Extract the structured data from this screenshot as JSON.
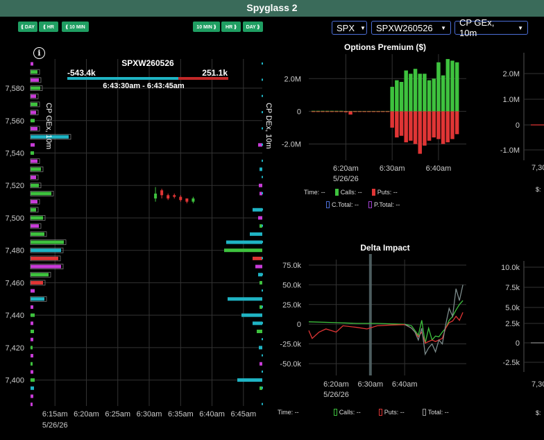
{
  "window": {
    "title": "Spyglass 2"
  },
  "toolbar": {
    "left_buttons": [
      "⟪ DAY",
      "⟪ HR",
      "⟪ 10 MIN"
    ],
    "right_buttons": [
      "10 MIN ⟫",
      "HR ⟫",
      "DAY ⟫"
    ],
    "selects": [
      {
        "value": "SPX"
      },
      {
        "value": "SPXW260526"
      },
      {
        "value": "CP GEx, 10m"
      }
    ]
  },
  "icons": {
    "info": "info-icon",
    "caret": "caret-down-icon"
  },
  "main_chart": {
    "expiry_label": "SPXW260526",
    "net_left": "-543.4k",
    "net_right": "251.1k",
    "time_range": "6:43:30am - 6:43:45am",
    "left_axis_label": "CP GEx, 10m",
    "right_axis_label": "CP DEx, 10m"
  },
  "side_panels": {
    "premium_legend": {
      "time": "Time:",
      "time_val": "--",
      "calls": "Calls:",
      "calls_val": "--",
      "puts": "Puts:",
      "puts_val": "--",
      "ctotal": "C.Total:",
      "ctotal_val": "--",
      "ptotal": "P.Total:",
      "ptotal_val": "--"
    },
    "delta_legend": {
      "time": "Time:",
      "time_val": "--",
      "calls": "Calls:",
      "calls_val": "--",
      "puts": "Puts:",
      "puts_val": "--",
      "total": "Total:",
      "total_val": "--"
    },
    "partial_left_label": "$:"
  },
  "colors": {
    "calls": "#3ec23e",
    "puts": "#e03535",
    "cyan": "#1fb4c4",
    "magenta": "#c83cd8",
    "accent": "#1f9e62",
    "titlebar": "#3a6b5a"
  },
  "chart_data": [
    {
      "type": "bar",
      "title": "",
      "x_axis": {
        "type": "time",
        "tick_labels": [
          "6:15am",
          "6:20am",
          "6:25am",
          "6:30am",
          "6:35am",
          "6:40am",
          "6:45am"
        ],
        "date_label": "5/26/26"
      },
      "y_axis": {
        "tick_labels": [
          "7,400",
          "7,420",
          "7,440",
          "7,460",
          "7,480",
          "7,500",
          "7,520",
          "7,540",
          "7,560",
          "7,580"
        ],
        "range": [
          7384,
          7598
        ]
      },
      "gex_bars": [
        {
          "strike": 7595,
          "value": 4,
          "color": "magenta"
        },
        {
          "strike": 7590,
          "value": 10,
          "color": "green"
        },
        {
          "strike": 7585,
          "value": 12,
          "color": "magenta"
        },
        {
          "strike": 7580,
          "value": 14,
          "color": "green"
        },
        {
          "strike": 7575,
          "value": 8,
          "color": "magenta"
        },
        {
          "strike": 7570,
          "value": 10,
          "color": "green"
        },
        {
          "strike": 7565,
          "value": 8,
          "color": "magenta"
        },
        {
          "strike": 7560,
          "value": 6,
          "color": "green"
        },
        {
          "strike": 7555,
          "value": 10,
          "color": "magenta"
        },
        {
          "strike": 7550,
          "value": 55,
          "color": "cyan"
        },
        {
          "strike": 7545,
          "value": 6,
          "color": "magenta"
        },
        {
          "strike": 7540,
          "value": 5,
          "color": "green"
        },
        {
          "strike": 7535,
          "value": 10,
          "color": "magenta"
        },
        {
          "strike": 7530,
          "value": 15,
          "color": "green"
        },
        {
          "strike": 7525,
          "value": 8,
          "color": "magenta"
        },
        {
          "strike": 7520,
          "value": 12,
          "color": "green"
        },
        {
          "strike": 7515,
          "value": 30,
          "color": "green"
        },
        {
          "strike": 7510,
          "value": 10,
          "color": "magenta"
        },
        {
          "strike": 7505,
          "value": 8,
          "color": "green"
        },
        {
          "strike": 7500,
          "value": 18,
          "color": "green"
        },
        {
          "strike": 7495,
          "value": 12,
          "color": "magenta"
        },
        {
          "strike": 7490,
          "value": 20,
          "color": "green"
        },
        {
          "strike": 7485,
          "value": 48,
          "color": "green"
        },
        {
          "strike": 7480,
          "value": 44,
          "color": "cyan"
        },
        {
          "strike": 7475,
          "value": 40,
          "color": "red"
        },
        {
          "strike": 7470,
          "value": 44,
          "color": "magenta"
        },
        {
          "strike": 7465,
          "value": 26,
          "color": "green"
        },
        {
          "strike": 7460,
          "value": 18,
          "color": "red"
        },
        {
          "strike": 7455,
          "value": 6,
          "color": "magenta"
        },
        {
          "strike": 7450,
          "value": 20,
          "color": "cyan"
        },
        {
          "strike": 7445,
          "value": 4,
          "color": "magenta"
        },
        {
          "strike": 7440,
          "value": 6,
          "color": "green"
        },
        {
          "strike": 7435,
          "value": 4,
          "color": "magenta"
        },
        {
          "strike": 7430,
          "value": 5,
          "color": "green"
        },
        {
          "strike": 7425,
          "value": 4,
          "color": "magenta"
        },
        {
          "strike": 7420,
          "value": 3,
          "color": "green"
        },
        {
          "strike": 7415,
          "value": 4,
          "color": "magenta"
        },
        {
          "strike": 7410,
          "value": 3,
          "color": "green"
        },
        {
          "strike": 7405,
          "value": 4,
          "color": "magenta"
        },
        {
          "strike": 7400,
          "value": 6,
          "color": "green"
        },
        {
          "strike": 7395,
          "value": 5,
          "color": "cyan"
        },
        {
          "strike": 7390,
          "value": 4,
          "color": "magenta"
        },
        {
          "strike": 7385,
          "value": 3,
          "color": "magenta"
        }
      ],
      "dex_bars": [
        {
          "strike": 7545,
          "value": 6,
          "color": "magenta"
        },
        {
          "strike": 7530,
          "value": 4,
          "color": "cyan"
        },
        {
          "strike": 7520,
          "value": 5,
          "color": "magenta"
        },
        {
          "strike": 7515,
          "value": 4,
          "color": "magenta"
        },
        {
          "strike": 7505,
          "value": 14,
          "color": "cyan"
        },
        {
          "strike": 7500,
          "value": 6,
          "color": "magenta"
        },
        {
          "strike": 7495,
          "value": 4,
          "color": "green"
        },
        {
          "strike": 7490,
          "value": 18,
          "color": "cyan"
        },
        {
          "strike": 7485,
          "value": 52,
          "color": "cyan"
        },
        {
          "strike": 7480,
          "value": 55,
          "color": "green"
        },
        {
          "strike": 7475,
          "value": 14,
          "color": "red"
        },
        {
          "strike": 7470,
          "value": 10,
          "color": "magenta"
        },
        {
          "strike": 7465,
          "value": 6,
          "color": "cyan"
        },
        {
          "strike": 7460,
          "value": 4,
          "color": "green"
        },
        {
          "strike": 7450,
          "value": 50,
          "color": "cyan"
        },
        {
          "strike": 7445,
          "value": 4,
          "color": "green"
        },
        {
          "strike": 7440,
          "value": 30,
          "color": "cyan"
        },
        {
          "strike": 7435,
          "value": 14,
          "color": "cyan"
        },
        {
          "strike": 7430,
          "value": 8,
          "color": "green"
        },
        {
          "strike": 7420,
          "value": 5,
          "color": "cyan"
        },
        {
          "strike": 7410,
          "value": 4,
          "color": "magenta"
        },
        {
          "strike": 7400,
          "value": 36,
          "color": "cyan"
        },
        {
          "strike": 7395,
          "value": 4,
          "color": "green"
        }
      ],
      "candles": [
        {
          "t": "6:31",
          "o": 7515,
          "c": 7512,
          "h": 7519,
          "l": 7510,
          "dir": "up"
        },
        {
          "t": "6:32",
          "o": 7517,
          "c": 7514,
          "h": 7518,
          "l": 7512,
          "dir": "down"
        },
        {
          "t": "6:33",
          "o": 7514,
          "c": 7512,
          "h": 7515,
          "l": 7511,
          "dir": "down"
        },
        {
          "t": "6:34",
          "o": 7514,
          "c": 7513,
          "h": 7515,
          "l": 7512,
          "dir": "down"
        },
        {
          "t": "6:35",
          "o": 7513,
          "c": 7511,
          "h": 7514,
          "l": 7510,
          "dir": "down"
        },
        {
          "t": "6:36",
          "o": 7512,
          "c": 7510,
          "h": 7512,
          "l": 7509,
          "dir": "down"
        },
        {
          "t": "6:37",
          "o": 7510,
          "c": 7512,
          "h": 7513,
          "l": 7509,
          "dir": "up"
        }
      ]
    },
    {
      "type": "bar",
      "title": "Options Premium ($)",
      "x_axis": {
        "type": "time",
        "tick_labels": [
          "6:20am",
          "6:30am",
          "6:40am"
        ],
        "date_label": "5/26/26"
      },
      "y_axis": {
        "tick_labels": [
          "2.0M",
          "0",
          "-2.0M"
        ],
        "range": [
          -3000000,
          3500000
        ]
      },
      "times": [
        "6:13",
        "6:14",
        "6:15",
        "6:16",
        "6:17",
        "6:18",
        "6:19",
        "6:20",
        "6:21",
        "6:22",
        "6:23",
        "6:24",
        "6:25",
        "6:26",
        "6:27",
        "6:28",
        "6:29",
        "6:30",
        "6:31",
        "6:32",
        "6:33",
        "6:34",
        "6:35",
        "6:36",
        "6:37",
        "6:38",
        "6:39",
        "6:40",
        "6:41",
        "6:42",
        "6:43",
        "6:44"
      ],
      "calls": [
        30000,
        30000,
        30000,
        30000,
        30000,
        30000,
        30000,
        20000,
        20000,
        20000,
        20000,
        20000,
        20000,
        20000,
        20000,
        20000,
        20000,
        1500000,
        1900000,
        1800000,
        2500000,
        2300000,
        2600000,
        2300000,
        2300000,
        1900000,
        2000000,
        3000000,
        2200000,
        3200000,
        3100000,
        3000000
      ],
      "puts": [
        -40000,
        -40000,
        -40000,
        -40000,
        -40000,
        -40000,
        -40000,
        -60000,
        -200000,
        -40000,
        -30000,
        -30000,
        -30000,
        -30000,
        -30000,
        -30000,
        -30000,
        -1000000,
        -1600000,
        -1500000,
        -1900000,
        -1800000,
        -2000000,
        -2600000,
        -2100000,
        -1800000,
        -1600000,
        -1700000,
        -2000000,
        -1900000,
        -1700000,
        -1400000
      ]
    },
    {
      "type": "line",
      "title": "Delta Impact",
      "x_axis": {
        "type": "time",
        "tick_labels": [
          "6:20am",
          "6:30am",
          "6:40am"
        ],
        "date_label": "5/26/26"
      },
      "y_axis": {
        "tick_labels": [
          "75.0k",
          "50.0k",
          "25.0k",
          "0",
          "-25.0k",
          "-50.0k"
        ],
        "range": [
          -65000,
          82000
        ]
      },
      "series": [
        {
          "name": "Calls",
          "color": "#3ec23e",
          "points": [
            [
              0,
              3000
            ],
            [
              8,
              2000
            ],
            [
              14,
              1000
            ],
            [
              20,
              1000
            ],
            [
              24,
              500
            ],
            [
              28,
              0
            ],
            [
              30,
              -2000
            ],
            [
              31,
              -8000
            ],
            [
              32,
              -14000
            ],
            [
              33,
              5000
            ],
            [
              34,
              -24000
            ],
            [
              35,
              -5000
            ],
            [
              36,
              -20000
            ],
            [
              37,
              -15000
            ],
            [
              38,
              -16000
            ],
            [
              39,
              -10000
            ],
            [
              40,
              -5000
            ],
            [
              41,
              5000
            ],
            [
              42,
              10000
            ],
            [
              43,
              18000
            ],
            [
              44,
              25000
            ],
            [
              45,
              30000
            ]
          ]
        },
        {
          "name": "Puts",
          "color": "#e03535",
          "points": [
            [
              0,
              -8000
            ],
            [
              1,
              -18000
            ],
            [
              3,
              -10000
            ],
            [
              5,
              -6000
            ],
            [
              8,
              -10000
            ],
            [
              10,
              -2000
            ],
            [
              14,
              -4000
            ],
            [
              17,
              -6000
            ],
            [
              20,
              -2000
            ],
            [
              24,
              -1000
            ],
            [
              28,
              -500
            ],
            [
              30,
              -5000
            ],
            [
              31,
              -10000
            ],
            [
              32,
              -16000
            ],
            [
              33,
              -10000
            ],
            [
              34,
              -24000
            ],
            [
              35,
              -22000
            ],
            [
              36,
              -20000
            ],
            [
              37,
              -22000
            ],
            [
              38,
              -20000
            ],
            [
              39,
              -18000
            ],
            [
              40,
              -5000
            ],
            [
              41,
              2000
            ],
            [
              42,
              4000
            ],
            [
              43,
              10000
            ],
            [
              44,
              5000
            ],
            [
              45,
              15000
            ]
          ]
        },
        {
          "name": "Total",
          "color": "#7d8c8c",
          "points": [
            [
              28,
              0
            ],
            [
              30,
              -5000
            ],
            [
              31,
              -10000
            ],
            [
              32,
              -20000
            ],
            [
              33,
              -5000
            ],
            [
              34,
              -38000
            ],
            [
              35,
              -30000
            ],
            [
              36,
              -25000
            ],
            [
              37,
              -35000
            ],
            [
              38,
              -20000
            ],
            [
              39,
              -25000
            ],
            [
              40,
              0
            ],
            [
              41,
              20000
            ],
            [
              42,
              10000
            ],
            [
              43,
              45000
            ],
            [
              44,
              30000
            ],
            [
              45,
              50000
            ]
          ]
        }
      ]
    }
  ],
  "partial_charts": {
    "premium_right_ticks": [
      "2.0M",
      "1.0M",
      "0",
      "-1.0M"
    ],
    "delta_right_ticks": [
      "10.0k",
      "7.5k",
      "5.0k",
      "2.5k",
      "0",
      "-2.5k"
    ],
    "cut_label": "7,30"
  }
}
